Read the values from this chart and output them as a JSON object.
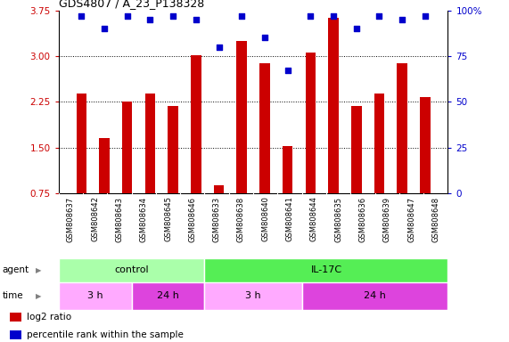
{
  "title": "GDS4807 / A_23_P138328",
  "samples": [
    "GSM808637",
    "GSM808642",
    "GSM808643",
    "GSM808634",
    "GSM808645",
    "GSM808646",
    "GSM808633",
    "GSM808638",
    "GSM808640",
    "GSM808641",
    "GSM808644",
    "GSM808635",
    "GSM808636",
    "GSM808639",
    "GSM808647",
    "GSM808648"
  ],
  "log2_ratio": [
    2.38,
    1.65,
    2.25,
    2.38,
    2.18,
    3.02,
    0.88,
    3.25,
    2.88,
    1.52,
    3.05,
    3.62,
    2.18,
    2.38,
    2.88,
    2.32
  ],
  "percentile": [
    97,
    90,
    97,
    95,
    97,
    95,
    80,
    97,
    85,
    67,
    97,
    97,
    90,
    97,
    95,
    97
  ],
  "bar_color": "#cc0000",
  "dot_color": "#0000cc",
  "ylim_left": [
    0.75,
    3.75
  ],
  "yticks_left": [
    0.75,
    1.5,
    2.25,
    3.0,
    3.75
  ],
  "ylim_right": [
    0,
    100
  ],
  "yticks_right": [
    0,
    25,
    50,
    75,
    100
  ],
  "agent_groups": [
    {
      "label": "control",
      "start": 0,
      "end": 6,
      "color": "#aaffaa"
    },
    {
      "label": "IL-17C",
      "start": 6,
      "end": 16,
      "color": "#55ee55"
    }
  ],
  "time_groups": [
    {
      "label": "3 h",
      "start": 0,
      "end": 3,
      "color": "#ffaaff"
    },
    {
      "label": "24 h",
      "start": 3,
      "end": 6,
      "color": "#dd44dd"
    },
    {
      "label": "3 h",
      "start": 6,
      "end": 10,
      "color": "#ffaaff"
    },
    {
      "label": "24 h",
      "start": 10,
      "end": 16,
      "color": "#dd44dd"
    }
  ],
  "legend_bar_label": "log2 ratio",
  "legend_dot_label": "percentile rank within the sample",
  "bar_color_legend": "#cc0000",
  "dot_color_legend": "#0000cc",
  "grid_color": "#888888",
  "label_bg": "#cccccc",
  "n_samples": 16
}
